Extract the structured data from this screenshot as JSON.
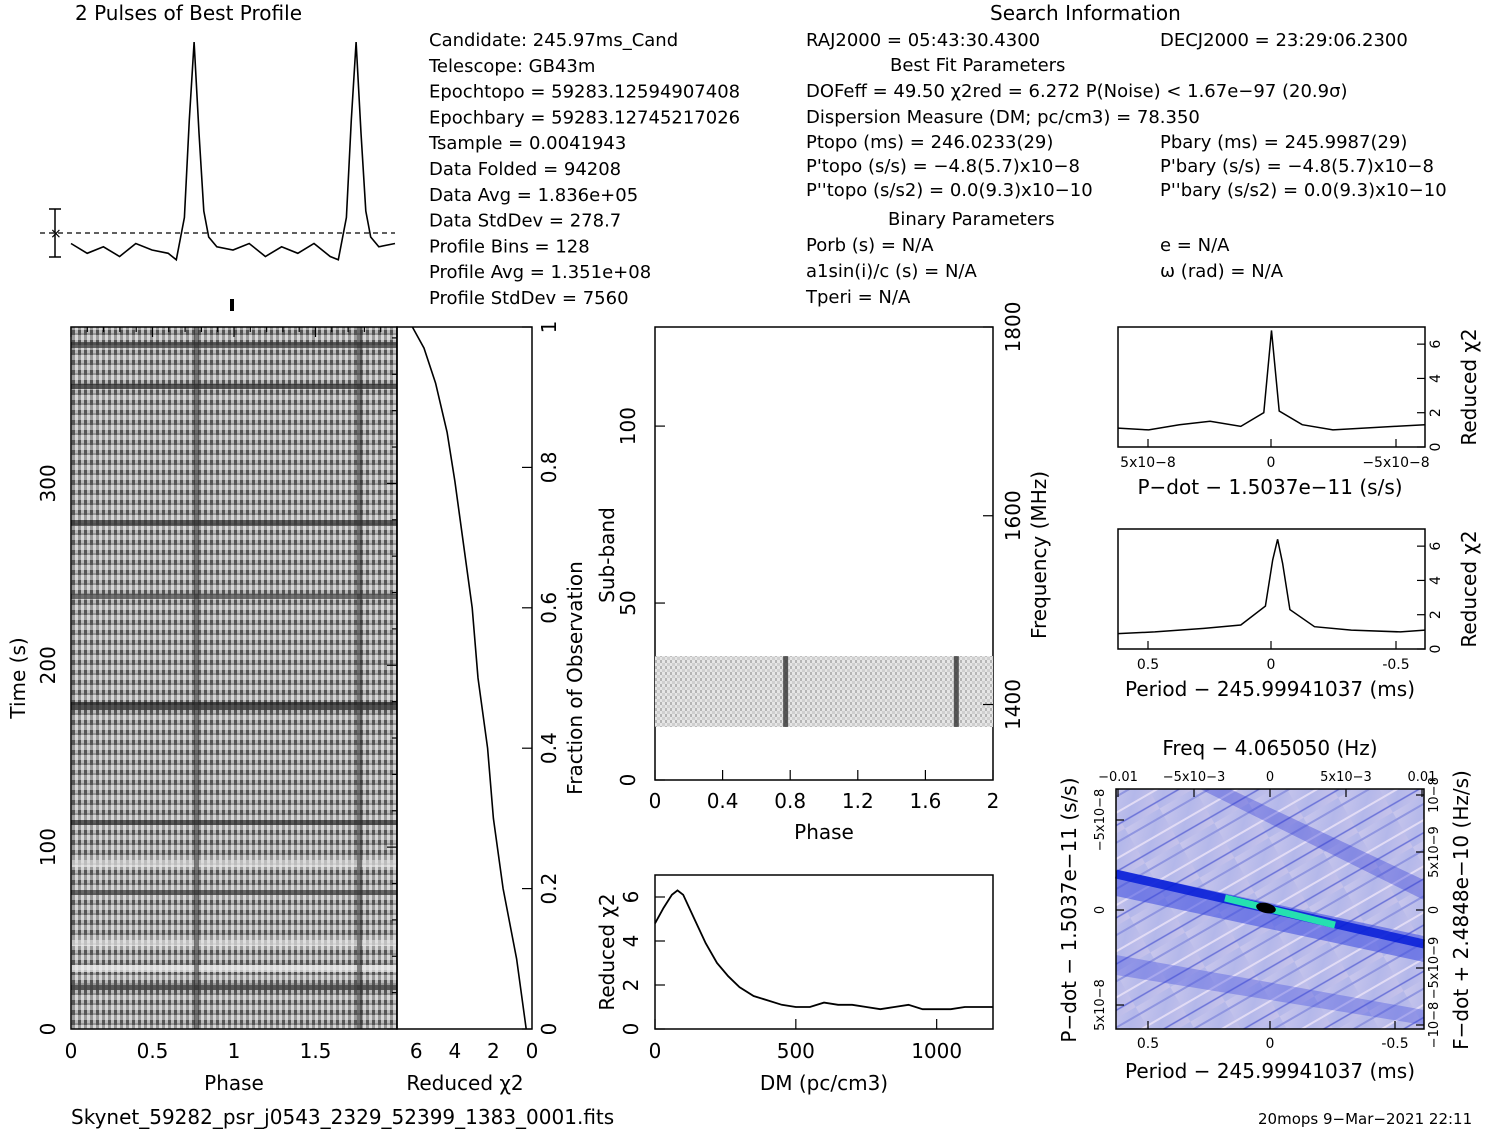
{
  "header": {
    "profile_title": "2 Pulses of Best Profile",
    "search_title": "Search Information"
  },
  "candidate_info": [
    "Candidate:  245.97ms_Cand",
    "Telescope:  GB43m",
    "Epochtopo = 59283.12594907408",
    "Epochbary = 59283.12745217026",
    "Tsample         =  0.0041943",
    "Data Folded     =  94208",
    "Data Avg        =  1.836e+05",
    "Data StdDev     =  278.7",
    "Profile Bins    =  128",
    "Profile Avg     =  1.351e+08",
    "Profile StdDev  =  7560"
  ],
  "coords": {
    "ra": "RAJ2000 = 05:43:30.4300",
    "dec": "DECJ2000 = 23:29:06.2300"
  },
  "fit": {
    "best_fit_title": "Best Fit Parameters",
    "dof_line": "DOFeff = 49.50  χ2red = 6.272  P(Noise) < 1.67e−97  (20.9σ)",
    "dm_line": "Dispersion Measure (DM; pc/cm3) = 78.350",
    "ptopo": "Ptopo (ms) =  246.0233(29)",
    "pbary": "Pbary (ms) =  245.9987(29)",
    "pdtopo": "P'topo (s/s) = −4.8(5.7)x10−8",
    "pdbary": "P'bary (s/s) = −4.8(5.7)x10−8",
    "pddtopo": "P''topo (s/s2) = 0.0(9.3)x10−10",
    "pddbary": "P''bary (s/s2) = 0.0(9.3)x10−10",
    "binary_title": "Binary Parameters",
    "porb": "Porb (s) = N/A",
    "e": "e = N/A",
    "a1": "a1sin(i)/c (s) = N/A",
    "omega": "ω (rad) = N/A",
    "tperi": "Tperi = N/A"
  },
  "footer": {
    "filename": "Skynet_59282_psr_j0543_2329_52399_1383_0001.fits",
    "stamp": "20mops  9−Mar−2021 22:11"
  },
  "chart_data": [
    {
      "id": "profile",
      "type": "line",
      "title": "2 Pulses of Best Profile",
      "x": [
        0.0,
        0.1,
        0.2,
        0.3,
        0.4,
        0.5,
        0.6,
        0.65,
        0.7,
        0.73,
        0.76,
        0.79,
        0.82,
        0.85,
        0.9,
        1.0,
        1.1,
        1.2,
        1.3,
        1.4,
        1.5,
        1.6,
        1.65,
        1.7,
        1.73,
        1.76,
        1.79,
        1.82,
        1.85,
        1.9,
        2.0
      ],
      "y": [
        0.5,
        0.35,
        0.45,
        0.3,
        0.5,
        0.4,
        0.35,
        0.25,
        0.9,
        2.4,
        3.6,
        2.2,
        1.0,
        0.6,
        0.45,
        0.4,
        0.5,
        0.3,
        0.45,
        0.35,
        0.5,
        0.3,
        0.25,
        0.9,
        2.4,
        3.6,
        2.2,
        1.0,
        0.6,
        0.45,
        0.5
      ]
    },
    {
      "id": "time_phase",
      "type": "heatmap",
      "xlabel": "Phase",
      "ylabel": "Time (s)",
      "xticks": [
        0,
        0.5,
        1,
        1.5
      ],
      "yticks": [
        0,
        100,
        200,
        300
      ],
      "xlim": [
        0,
        2
      ],
      "ylim": [
        0,
        386
      ]
    },
    {
      "id": "chi_vs_time",
      "type": "line",
      "xlabel": "Reduced χ2",
      "ylabel": "Fraction of Observation",
      "xticks": [
        6,
        4,
        2,
        0
      ],
      "yticks": [
        0,
        0.2,
        0.4,
        0.6,
        0.8,
        1
      ],
      "x": [
        0.3,
        0.8,
        1.5,
        2.0,
        2.3,
        2.8,
        3.1,
        3.6,
        4.0,
        4.4,
        5.0,
        5.6,
        6.2
      ],
      "y": [
        0.0,
        0.1,
        0.2,
        0.3,
        0.4,
        0.5,
        0.6,
        0.7,
        0.78,
        0.85,
        0.92,
        0.97,
        1.0
      ]
    },
    {
      "id": "subband_phase",
      "type": "heatmap",
      "xlabel": "Phase",
      "ylabel": "Sub-band",
      "y2label": "Frequency (MHz)",
      "xticks": [
        0,
        0.4,
        0.8,
        1.2,
        1.6,
        2
      ],
      "yticks": [
        0,
        50,
        100
      ],
      "y2ticks": [
        1400,
        1600,
        1800
      ],
      "xlim": [
        0,
        2
      ],
      "ylim": [
        0,
        128
      ],
      "filled_subbands": [
        15,
        35
      ]
    },
    {
      "id": "dm_curve",
      "type": "line",
      "xlabel": "DM (pc/cm3)",
      "ylabel": "Reduced χ2",
      "xticks": [
        0,
        500,
        1000
      ],
      "yticks": [
        0,
        2,
        4,
        6
      ],
      "xlim": [
        0,
        1200
      ],
      "ylim": [
        0,
        7
      ],
      "x": [
        0,
        30,
        60,
        80,
        100,
        140,
        180,
        220,
        260,
        300,
        350,
        400,
        450,
        500,
        550,
        600,
        650,
        700,
        750,
        800,
        850,
        900,
        950,
        1000,
        1050,
        1100,
        1150,
        1200
      ],
      "y": [
        4.8,
        5.5,
        6.1,
        6.3,
        6.1,
        5.0,
        3.9,
        3.0,
        2.4,
        1.9,
        1.5,
        1.3,
        1.1,
        1.0,
        1.0,
        1.2,
        1.1,
        1.1,
        1.0,
        0.9,
        1.0,
        1.1,
        0.9,
        0.9,
        0.9,
        1.0,
        1.0,
        1.0
      ]
    },
    {
      "id": "pdot_curve",
      "type": "line",
      "xlabel": "P−dot − 1.5037e−11 (s/s)",
      "ylabel": "Reduced χ2",
      "xticks": [
        "5x10−8",
        "0",
        "−5x10−8"
      ],
      "yticks": [
        0,
        2,
        4,
        6
      ],
      "x": [
        1.0,
        0.8,
        0.6,
        0.4,
        0.2,
        0.05,
        0.0,
        -0.05,
        -0.2,
        -0.4,
        -0.6,
        -0.8,
        -1.0
      ],
      "y": [
        1.1,
        1.0,
        1.3,
        1.5,
        1.2,
        2.0,
        6.8,
        2.1,
        1.3,
        1.0,
        1.1,
        1.2,
        1.3
      ]
    },
    {
      "id": "period_curve",
      "type": "line",
      "xlabel": "Period − 245.99941037 (ms)",
      "ylabel": "Reduced χ2",
      "xticks": [
        0.5,
        0,
        -0.5
      ],
      "yticks": [
        0,
        2,
        4,
        6
      ],
      "x": [
        0.65,
        0.5,
        0.3,
        0.15,
        0.05,
        0.02,
        0.0,
        -0.02,
        -0.05,
        -0.15,
        -0.3,
        -0.5,
        -0.6
      ],
      "y": [
        0.9,
        1.0,
        1.2,
        1.4,
        2.5,
        5.2,
        6.4,
        5.0,
        2.3,
        1.3,
        1.1,
        1.0,
        1.1
      ]
    },
    {
      "id": "p_pdot_plane",
      "type": "heatmap",
      "title": "Freq − 4.065050 (Hz)",
      "xlabel": "Period − 245.99941037 (ms)",
      "ylabel": "P−dot − 1.5037e−11 (s/s)",
      "y2label": "F−dot + 2.4848e−10 (Hz/s)",
      "xticks": [
        0.5,
        0,
        -0.5
      ],
      "x2ticks": [
        "−0.01",
        "−5x10−3",
        "0",
        "5x10−3",
        "0.01"
      ],
      "yticks": [
        "−5x10−8",
        "0",
        "5x10−8"
      ],
      "y2ticks": [
        "10−8",
        "5x10−9",
        "0",
        "−5x10−9",
        "−10−8"
      ]
    }
  ],
  "colors": {
    "ink": "#000000",
    "plane_base": "#b9bde9",
    "plane_dark": "#1a2bd6",
    "plane_peak": "#22e0b0"
  }
}
